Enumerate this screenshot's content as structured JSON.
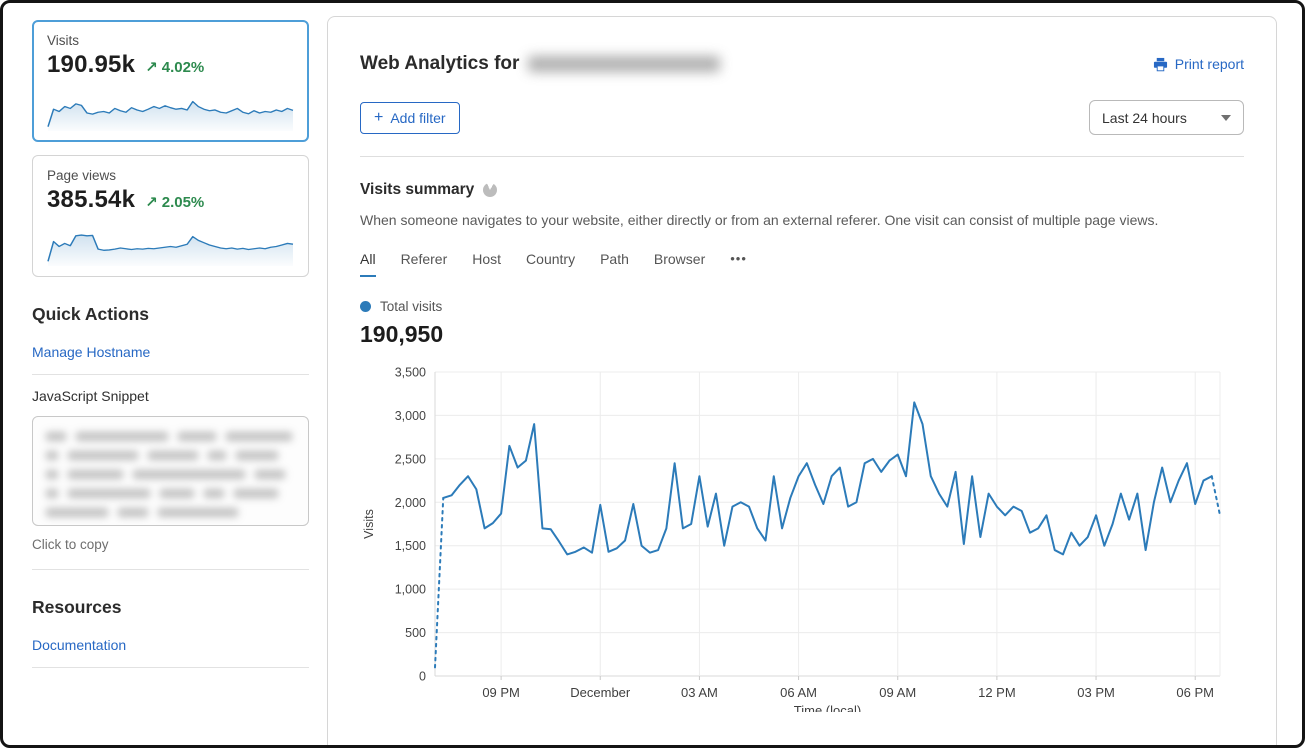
{
  "colors": {
    "link_blue": "#2768c4",
    "chart_blue": "#2c7bb9",
    "positive_green": "#2d8a4e",
    "selected_card_border": "#4e9ed8"
  },
  "sidebar": {
    "metric_cards": [
      {
        "label": "Visits",
        "value": "190.95k",
        "delta_arrow": "↗",
        "delta": "4.02%",
        "selected": true,
        "spark": [
          2,
          48,
          42,
          55,
          50,
          62,
          58,
          38,
          35,
          40,
          42,
          38,
          50,
          44,
          40,
          52,
          46,
          42,
          48,
          55,
          50,
          57,
          52,
          48,
          50,
          46,
          68,
          55,
          48,
          44,
          46,
          40,
          38,
          44,
          50,
          40,
          36,
          44,
          38,
          42,
          40,
          46,
          42,
          50,
          45
        ]
      },
      {
        "label": "Page views",
        "value": "385.54k",
        "delta_arrow": "↗",
        "delta": "2.05%",
        "selected": false,
        "spark": [
          3,
          55,
          42,
          50,
          44,
          70,
          72,
          70,
          71,
          35,
          32,
          33,
          35,
          38,
          36,
          34,
          36,
          35,
          37,
          36,
          38,
          40,
          42,
          40,
          44,
          48,
          68,
          58,
          52,
          46,
          42,
          38,
          36,
          38,
          35,
          37,
          34,
          36,
          38,
          36,
          40,
          42,
          46,
          50,
          48
        ]
      }
    ],
    "quick_actions_title": "Quick Actions",
    "manage_hostname_link": "Manage Hostname",
    "javascript_snippet_label": "JavaScript Snippet",
    "click_to_copy": "Click to copy",
    "resources_title": "Resources",
    "documentation_link": "Documentation"
  },
  "header": {
    "title": "Web Analytics for",
    "print_report": "Print report"
  },
  "filters": {
    "plus": "+",
    "add_filter_label": "Add filter",
    "time_range": "Last 24 hours"
  },
  "summary": {
    "title": "Visits summary",
    "description": "When someone navigates to your website, either directly or from an external referer. One visit can consist of multiple page views.",
    "tabs": [
      {
        "label": "All",
        "active": true
      },
      {
        "label": "Referer",
        "active": false
      },
      {
        "label": "Host",
        "active": false
      },
      {
        "label": "Country",
        "active": false
      },
      {
        "label": "Path",
        "active": false
      },
      {
        "label": "Browser",
        "active": false
      },
      {
        "label": "•••",
        "active": false,
        "more": true
      }
    ],
    "legend_label": "Total visits",
    "total": "190,950"
  },
  "chart_data": {
    "type": "line",
    "title": "Total visits",
    "xlabel": "Time (local)",
    "ylabel": "Visits",
    "ylim": [
      0,
      3500
    ],
    "y_ticks": [
      0,
      500,
      1000,
      1500,
      2000,
      2500,
      3000,
      3500
    ],
    "x_tick_labels": [
      "09 PM",
      "December",
      "03 AM",
      "06 AM",
      "09 AM",
      "12 PM",
      "03 PM",
      "06 PM"
    ],
    "x_tick_index_positions": [
      8,
      20,
      32,
      44,
      56,
      68,
      80,
      92
    ],
    "grid": true,
    "legend_position": "top-left",
    "dashed_head_segments": 1,
    "dashed_tail_segments": 1,
    "values": [
      100,
      2050,
      2080,
      2200,
      2300,
      2150,
      1700,
      1760,
      1870,
      2650,
      2400,
      2480,
      2900,
      1700,
      1690,
      1550,
      1400,
      1430,
      1480,
      1420,
      1970,
      1430,
      1470,
      1560,
      1980,
      1500,
      1420,
      1450,
      1700,
      2450,
      1700,
      1750,
      2300,
      1720,
      2100,
      1500,
      1950,
      2000,
      1950,
      1700,
      1560,
      2300,
      1700,
      2050,
      2300,
      2450,
      2200,
      1980,
      2300,
      2400,
      1950,
      2000,
      2450,
      2500,
      2350,
      2480,
      2550,
      2300,
      3150,
      2900,
      2300,
      2100,
      1950,
      2350,
      1520,
      2300,
      1600,
      2100,
      1950,
      1850,
      1950,
      1900,
      1650,
      1700,
      1850,
      1450,
      1400,
      1650,
      1500,
      1600,
      1850,
      1500,
      1750,
      2100,
      1800,
      2100,
      1450,
      2000,
      2400,
      2000,
      2250,
      2450,
      1980,
      2250,
      2300,
      1850
    ]
  }
}
